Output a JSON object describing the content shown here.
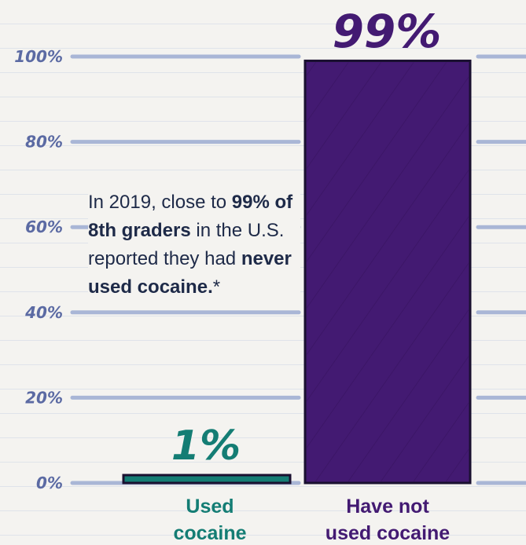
{
  "chart_data": {
    "type": "bar",
    "categories": [
      "Used\ncocaine",
      "Have not\nused cocaine"
    ],
    "values": [
      1,
      99
    ],
    "value_labels": [
      "1%",
      "99%"
    ],
    "y_ticks": [
      "0%",
      "20%",
      "40%",
      "60%",
      "80%",
      "100%"
    ],
    "ylim": [
      0,
      100
    ],
    "grid": true,
    "colors": {
      "used": "#147d74",
      "not_used": "#431a72",
      "axis_text": "#5b6aa3",
      "gridline": "#a9b6d6"
    }
  },
  "annotation": {
    "part1": "In 2019, close to ",
    "bold1": "99% of 8th graders",
    "part2": " in the U.S. reported they had ",
    "bold2": "never used cocaine.",
    "asterisk": "*"
  }
}
